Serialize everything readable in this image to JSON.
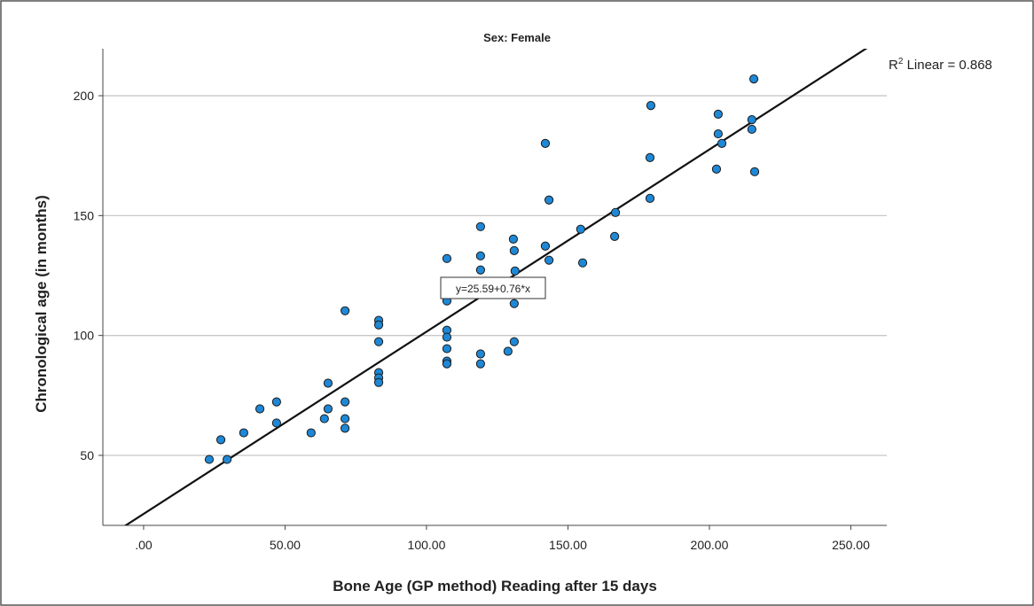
{
  "chart_data": {
    "type": "scatter",
    "title": "Sex: Female",
    "x_label": "Bone Age (GP method) Reading after 15 days",
    "y_label": "Chronological age (in months)",
    "xlim": [
      -14.4,
      262.7
    ],
    "ylim": [
      20.8,
      219.6
    ],
    "xticks": [
      {
        "value": 0,
        "label": ".00"
      },
      {
        "value": 50,
        "label": "50.00"
      },
      {
        "value": 100,
        "label": "100.00"
      },
      {
        "value": 150,
        "label": "150.00"
      },
      {
        "value": 200,
        "label": "200.00"
      },
      {
        "value": 250,
        "label": "250.00"
      }
    ],
    "yticks": [
      50,
      100,
      150,
      200
    ],
    "grid": true,
    "color": "#1e88d6",
    "line_color": "#111111",
    "fit": {
      "intercept": 25.59,
      "slope": 0.76
    },
    "fit_label": "y=25.59+0.76*x",
    "r2_label": {
      "base": "R",
      "sup": "2",
      "rest": " Linear = 0.868"
    },
    "x": [
      23.2,
      27.3,
      29.5,
      35.4,
      41.1,
      47.0,
      47.0,
      59.2,
      63.9,
      65.2,
      65.2,
      71.2,
      71.2,
      71.2,
      71.2,
      83.1,
      83.1,
      83.1,
      83.1,
      83.1,
      83.1,
      107.2,
      107.2,
      107.2,
      107.2,
      107.2,
      107.2,
      107.2,
      119.1,
      119.1,
      119.1,
      119.1,
      119.1,
      128.8,
      130.7,
      131.0,
      131.3,
      131.0,
      131.0,
      142.0,
      142.0,
      143.3,
      143.3,
      154.5,
      155.2,
      166.8,
      166.5,
      179.3,
      179.0,
      179.0,
      203.1,
      203.1,
      204.4,
      202.5,
      215.7,
      215.0,
      215.0,
      216.0
    ],
    "values": [
      48.3,
      56.5,
      48.3,
      59.4,
      69.4,
      72.3,
      63.5,
      59.4,
      65.3,
      69.4,
      80.1,
      110.3,
      72.3,
      65.3,
      61.3,
      106.3,
      104.4,
      97.4,
      84.5,
      82.3,
      80.4,
      132.1,
      114.4,
      102.2,
      99.3,
      94.5,
      89.3,
      88.2,
      145.4,
      133.2,
      127.3,
      92.3,
      88.2,
      93.4,
      140.2,
      135.4,
      126.9,
      113.3,
      97.4,
      180.1,
      137.3,
      156.5,
      131.4,
      144.3,
      130.3,
      151.3,
      141.3,
      195.9,
      174.2,
      157.2,
      192.3,
      184.1,
      180.1,
      169.4,
      207.0,
      190.0,
      186.0,
      168.3
    ]
  }
}
